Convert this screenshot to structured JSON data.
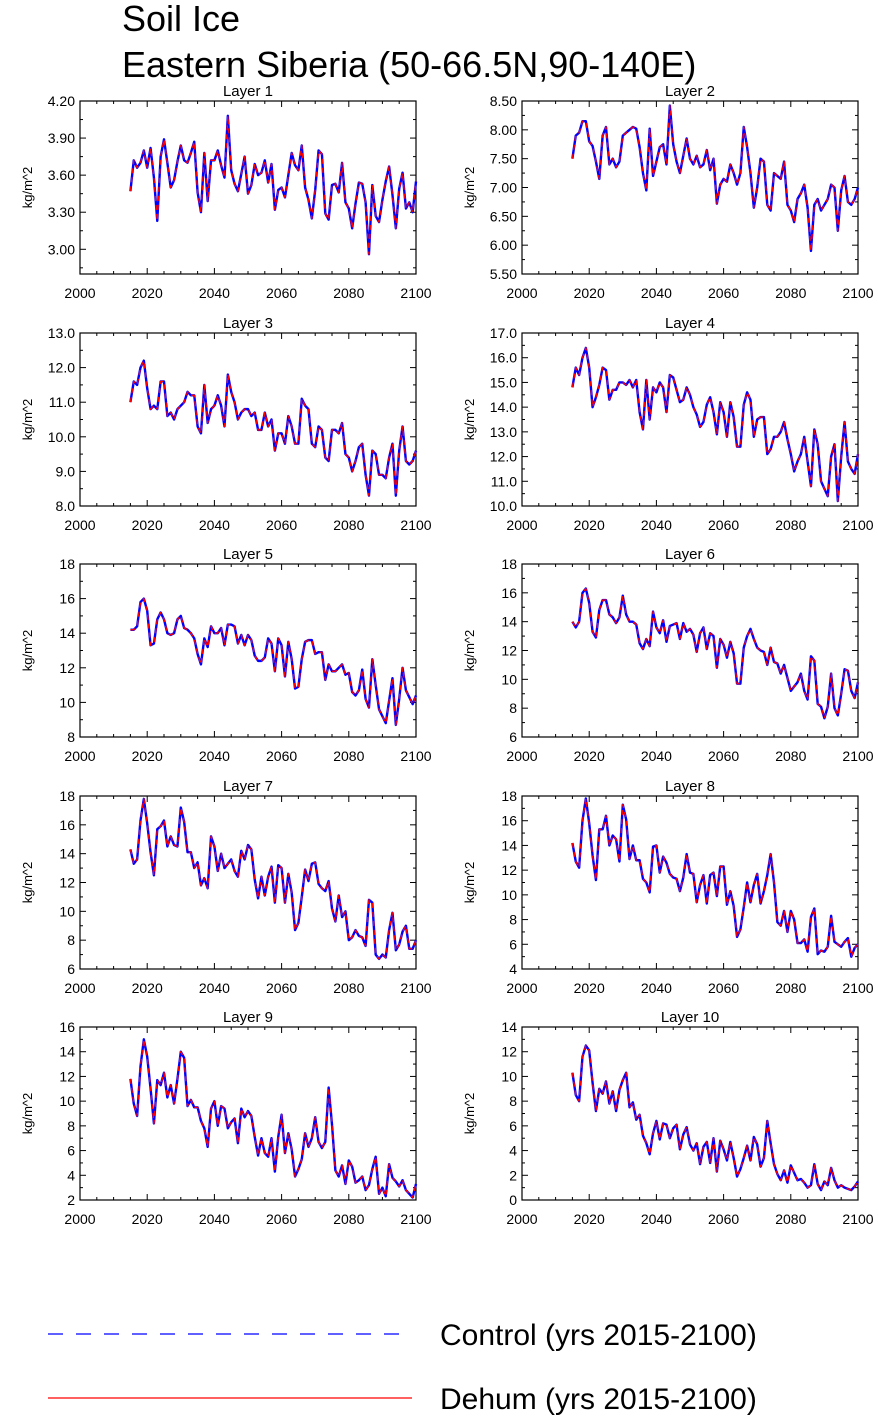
{
  "chart_data": {
    "type": "line",
    "title": [
      "Soil Ice",
      "Eastern Siberia (50-66.5N,90-140E)"
    ],
    "legend": [
      {
        "name": "Control (yrs 2015-2100)",
        "color": "#0000ff",
        "style": "dashed"
      },
      {
        "name": "Dehum (yrs 2015-2100)",
        "color": "#ff0000",
        "style": "solid"
      }
    ],
    "x_start": 2015,
    "xlim": [
      2000,
      2100
    ],
    "xticks": [
      2000,
      2020,
      2040,
      2060,
      2080,
      2100
    ],
    "ylabel": "kg/m^2",
    "panels": [
      {
        "title": "Layer 1",
        "ylim": [
          2.8,
          4.2
        ],
        "yticks": [
          3.0,
          3.3,
          3.6,
          3.9,
          4.2
        ],
        "ytick_labels": [
          "3.00",
          "3.30",
          "3.60",
          "3.90",
          "4.20"
        ],
        "values": [
          3.47,
          3.72,
          3.66,
          3.7,
          3.8,
          3.66,
          3.82,
          3.58,
          3.23,
          3.75,
          3.89,
          3.7,
          3.5,
          3.56,
          3.71,
          3.84,
          3.72,
          3.7,
          3.78,
          3.87,
          3.46,
          3.3,
          3.78,
          3.39,
          3.72,
          3.72,
          3.8,
          3.68,
          3.58,
          4.08,
          3.64,
          3.53,
          3.47,
          3.61,
          3.75,
          3.45,
          3.52,
          3.69,
          3.6,
          3.62,
          3.72,
          3.54,
          3.69,
          3.32,
          3.48,
          3.5,
          3.42,
          3.6,
          3.78,
          3.68,
          3.64,
          3.84,
          3.5,
          3.4,
          3.25,
          3.48,
          3.8,
          3.77,
          3.29,
          3.24,
          3.52,
          3.53,
          3.46,
          3.7,
          3.38,
          3.33,
          3.17,
          3.37,
          3.54,
          3.53,
          3.38,
          2.96,
          3.52,
          3.27,
          3.22,
          3.4,
          3.55,
          3.67,
          3.44,
          3.17,
          3.49,
          3.62,
          3.33,
          3.38,
          3.3,
          3.55
        ]
      },
      {
        "title": "Layer 2",
        "ylim": [
          5.5,
          8.5
        ],
        "yticks": [
          5.5,
          6.0,
          6.5,
          7.0,
          7.5,
          8.0,
          8.5
        ],
        "ytick_labels": [
          "5.50",
          "6.00",
          "6.50",
          "7.00",
          "7.50",
          "8.00",
          "8.50"
        ],
        "values": [
          7.5,
          7.9,
          7.95,
          8.15,
          8.15,
          7.8,
          7.72,
          7.45,
          7.15,
          7.9,
          8.05,
          7.4,
          7.5,
          7.35,
          7.45,
          7.9,
          7.95,
          8.0,
          8.05,
          8.02,
          7.7,
          7.25,
          6.95,
          8.02,
          7.2,
          7.45,
          7.7,
          7.75,
          7.4,
          8.42,
          7.75,
          7.45,
          7.25,
          7.55,
          7.85,
          7.5,
          7.4,
          7.55,
          7.35,
          7.4,
          7.65,
          7.3,
          7.5,
          6.72,
          7.05,
          7.15,
          7.1,
          7.4,
          7.25,
          7.05,
          7.25,
          8.05,
          7.7,
          7.25,
          6.65,
          7.0,
          7.5,
          7.45,
          6.7,
          6.6,
          7.25,
          7.2,
          7.15,
          7.45,
          6.7,
          6.6,
          6.4,
          6.8,
          6.9,
          7.05,
          6.65,
          5.9,
          6.7,
          6.8,
          6.6,
          6.7,
          6.8,
          7.05,
          7.0,
          6.25,
          6.95,
          7.2,
          6.75,
          6.7,
          6.8,
          7.0
        ]
      },
      {
        "title": "Layer 3",
        "ylim": [
          8.0,
          13.0
        ],
        "yticks": [
          8,
          9,
          10,
          11,
          12,
          13
        ],
        "ytick_labels": [
          "8.0",
          "9.0",
          "10.0",
          "11.0",
          "12.0",
          "13.0"
        ],
        "values": [
          11.0,
          11.6,
          11.5,
          12.0,
          12.2,
          11.4,
          10.8,
          10.9,
          10.8,
          11.6,
          11.6,
          10.6,
          10.7,
          10.5,
          10.8,
          10.9,
          11.0,
          11.3,
          11.2,
          11.2,
          10.3,
          10.1,
          11.5,
          10.4,
          10.8,
          10.9,
          11.2,
          10.9,
          10.3,
          11.8,
          11.3,
          11.0,
          10.5,
          10.7,
          10.8,
          10.8,
          10.6,
          10.7,
          10.2,
          10.2,
          10.7,
          10.3,
          10.5,
          9.6,
          10.1,
          10.1,
          9.8,
          10.6,
          10.3,
          9.8,
          9.8,
          11.1,
          10.9,
          10.8,
          9.8,
          9.7,
          10.3,
          10.2,
          9.4,
          9.3,
          10.2,
          10.2,
          10.1,
          10.4,
          9.5,
          9.4,
          9.0,
          9.3,
          9.7,
          9.8,
          8.9,
          8.3,
          9.6,
          9.5,
          8.9,
          8.9,
          8.8,
          9.4,
          9.8,
          8.3,
          9.6,
          10.3,
          9.3,
          9.2,
          9.3,
          9.6
        ]
      },
      {
        "title": "Layer 4",
        "ylim": [
          10,
          17
        ],
        "yticks": [
          10,
          11,
          12,
          13,
          14,
          15,
          16,
          17
        ],
        "ytick_labels": [
          "10.0",
          "11.0",
          "12.0",
          "13.0",
          "14.0",
          "15.0",
          "16.0",
          "17.0"
        ],
        "values": [
          14.8,
          15.6,
          15.3,
          16.0,
          16.4,
          15.6,
          14.0,
          14.4,
          14.9,
          15.6,
          15.5,
          14.3,
          14.7,
          14.7,
          15.0,
          15.0,
          14.9,
          15.1,
          14.8,
          15.1,
          13.8,
          13.1,
          15.1,
          13.5,
          14.8,
          14.6,
          15.0,
          14.8,
          13.8,
          15.3,
          15.2,
          14.7,
          14.2,
          14.3,
          14.8,
          14.5,
          14.0,
          13.7,
          13.2,
          13.4,
          14.1,
          14.4,
          13.8,
          12.9,
          14.2,
          13.8,
          12.8,
          14.2,
          13.6,
          12.4,
          12.4,
          14.1,
          14.6,
          14.3,
          12.8,
          13.5,
          13.6,
          13.6,
          12.1,
          12.3,
          12.8,
          12.8,
          13.0,
          13.4,
          12.7,
          12.1,
          11.4,
          11.8,
          12.1,
          12.8,
          11.8,
          10.8,
          13.1,
          12.5,
          11.0,
          10.7,
          10.4,
          12.0,
          12.5,
          10.2,
          12.0,
          13.4,
          11.8,
          11.5,
          11.3,
          12.1
        ]
      },
      {
        "title": "Layer 5",
        "ylim": [
          8,
          18
        ],
        "yticks": [
          8,
          10,
          12,
          14,
          16,
          18
        ],
        "ytick_labels": [
          "8",
          "10",
          "12",
          "14",
          "16",
          "18"
        ],
        "values": [
          14.2,
          14.2,
          14.4,
          15.8,
          16.0,
          15.3,
          13.3,
          13.4,
          14.8,
          15.2,
          14.8,
          14.0,
          13.9,
          14.0,
          14.8,
          15.0,
          14.3,
          14.2,
          14.0,
          13.7,
          12.8,
          12.2,
          13.7,
          13.2,
          14.4,
          14.0,
          14.0,
          14.3,
          13.3,
          14.5,
          14.5,
          14.4,
          13.4,
          13.9,
          13.3,
          13.9,
          13.6,
          12.7,
          12.4,
          12.4,
          12.6,
          13.7,
          13.4,
          11.8,
          13.7,
          13.3,
          11.5,
          13.5,
          12.5,
          10.8,
          10.9,
          12.5,
          13.5,
          13.6,
          13.6,
          12.8,
          12.9,
          12.9,
          11.3,
          12.2,
          11.8,
          11.8,
          12.0,
          12.2,
          11.6,
          11.7,
          10.6,
          10.4,
          10.7,
          11.9,
          10.2,
          9.7,
          12.5,
          11.0,
          9.6,
          9.2,
          8.8,
          10.1,
          11.4,
          8.7,
          10.2,
          12.0,
          10.7,
          10.3,
          9.9,
          10.4
        ]
      },
      {
        "title": "Layer 6",
        "ylim": [
          6,
          18
        ],
        "yticks": [
          6,
          8,
          10,
          12,
          14,
          16,
          18
        ],
        "ytick_labels": [
          "6",
          "8",
          "10",
          "12",
          "14",
          "16",
          "18"
        ],
        "values": [
          14.0,
          13.6,
          14.0,
          16.0,
          16.3,
          15.3,
          13.3,
          12.9,
          14.8,
          15.5,
          15.5,
          14.5,
          14.3,
          13.9,
          14.3,
          15.8,
          14.5,
          14.0,
          14.0,
          13.8,
          12.5,
          12.1,
          12.8,
          12.3,
          14.7,
          13.6,
          13.2,
          14.1,
          12.6,
          13.7,
          13.8,
          13.9,
          12.8,
          13.9,
          13.3,
          13.5,
          13.1,
          11.9,
          13.2,
          13.6,
          12.1,
          13.2,
          13.0,
          10.8,
          12.8,
          12.4,
          11.5,
          12.6,
          11.8,
          9.7,
          9.7,
          12.2,
          13.0,
          13.5,
          12.8,
          12.2,
          12.0,
          11.9,
          11.0,
          12.2,
          11.2,
          11.1,
          10.4,
          11.0,
          10.1,
          9.2,
          9.5,
          9.8,
          10.4,
          9.2,
          8.6,
          11.6,
          11.3,
          8.3,
          8.1,
          7.3,
          8.1,
          10.4,
          8.0,
          7.5,
          9.0,
          10.7,
          10.6,
          9.2,
          8.7,
          9.8
        ]
      },
      {
        "title": "Layer 7",
        "ylim": [
          6,
          18
        ],
        "yticks": [
          6,
          8,
          10,
          12,
          14,
          16,
          18
        ],
        "ytick_labels": [
          "6",
          "8",
          "10",
          "12",
          "14",
          "16",
          "18"
        ],
        "values": [
          14.3,
          13.3,
          13.6,
          16.3,
          17.8,
          16.1,
          14.1,
          12.5,
          15.7,
          15.9,
          16.3,
          14.5,
          15.2,
          14.6,
          14.5,
          17.2,
          16.2,
          14.1,
          14.1,
          13.0,
          13.4,
          11.8,
          12.3,
          11.6,
          15.2,
          14.5,
          12.8,
          14.0,
          13.0,
          13.3,
          13.6,
          12.8,
          12.4,
          14.2,
          13.6,
          14.6,
          14.3,
          12.2,
          10.9,
          12.4,
          11.1,
          12.4,
          13.1,
          10.6,
          13.2,
          13.0,
          10.6,
          12.6,
          11.3,
          8.7,
          9.2,
          11.0,
          12.9,
          12.1,
          13.3,
          13.4,
          11.9,
          11.6,
          11.4,
          12.1,
          10.2,
          9.3,
          11.1,
          9.6,
          10.0,
          8.0,
          8.2,
          8.7,
          8.3,
          8.2,
          7.6,
          10.8,
          10.6,
          7.0,
          6.7,
          7.0,
          6.8,
          8.7,
          9.9,
          7.3,
          7.7,
          8.6,
          9.0,
          7.4,
          7.4,
          8.0
        ]
      },
      {
        "title": "Layer 8",
        "ylim": [
          4,
          18
        ],
        "yticks": [
          4,
          6,
          8,
          10,
          12,
          14,
          16,
          18
        ],
        "ytick_labels": [
          "4",
          "6",
          "8",
          "10",
          "12",
          "14",
          "16",
          "18"
        ],
        "values": [
          14.2,
          12.7,
          12.2,
          16.0,
          17.8,
          15.8,
          13.2,
          11.2,
          15.3,
          15.3,
          16.4,
          14.0,
          14.8,
          14.5,
          12.7,
          17.3,
          16.1,
          12.9,
          14.0,
          12.8,
          12.8,
          11.3,
          11.0,
          10.2,
          13.9,
          14.0,
          11.8,
          13.1,
          12.6,
          11.7,
          11.4,
          11.3,
          10.3,
          11.4,
          13.3,
          11.8,
          11.7,
          9.4,
          10.8,
          11.6,
          9.3,
          11.6,
          11.8,
          9.9,
          12.3,
          12.3,
          9.2,
          10.3,
          9.1,
          6.6,
          7.2,
          9.0,
          11.0,
          9.4,
          10.8,
          11.7,
          9.3,
          10.3,
          11.6,
          13.3,
          11.0,
          7.8,
          7.5,
          8.7,
          7.0,
          8.7,
          8.0,
          6.1,
          6.1,
          6.4,
          5.4,
          8.2,
          8.9,
          5.2,
          5.5,
          5.4,
          5.8,
          8.3,
          6.2,
          6.0,
          5.8,
          6.2,
          6.5,
          5.0,
          5.7,
          6.0
        ]
      },
      {
        "title": "Layer 9",
        "ylim": [
          2,
          16
        ],
        "yticks": [
          2,
          4,
          6,
          8,
          10,
          12,
          14,
          16
        ],
        "ytick_labels": [
          "2",
          "4",
          "6",
          "8",
          "10",
          "12",
          "14",
          "16"
        ],
        "values": [
          11.8,
          9.8,
          8.8,
          12.8,
          15.0,
          13.6,
          11.0,
          8.2,
          11.7,
          11.3,
          12.3,
          10.3,
          11.3,
          9.8,
          11.8,
          14.0,
          13.5,
          9.6,
          10.1,
          9.5,
          9.5,
          8.4,
          7.8,
          6.3,
          9.4,
          10.0,
          8.0,
          9.6,
          9.4,
          7.8,
          8.3,
          8.6,
          6.6,
          9.4,
          8.7,
          9.2,
          8.8,
          7.1,
          5.6,
          7.0,
          5.8,
          5.5,
          7.0,
          4.3,
          7.1,
          8.9,
          5.8,
          7.4,
          6.1,
          3.9,
          4.5,
          5.3,
          7.4,
          6.3,
          7.0,
          8.7,
          6.7,
          6.2,
          6.7,
          11.1,
          8.1,
          4.4,
          3.9,
          4.8,
          3.3,
          5.2,
          4.7,
          3.4,
          3.6,
          3.9,
          2.8,
          3.2,
          4.5,
          5.5,
          2.5,
          3.0,
          2.3,
          4.9,
          3.8,
          3.5,
          3.1,
          3.6,
          2.8,
          2.5,
          2.2,
          3.3
        ]
      },
      {
        "title": "Layer 10",
        "ylim": [
          0,
          14
        ],
        "yticks": [
          0,
          2,
          4,
          6,
          8,
          10,
          12,
          14
        ],
        "ytick_labels": [
          "0",
          "2",
          "4",
          "6",
          "8",
          "10",
          "12",
          "14"
        ],
        "values": [
          10.3,
          8.5,
          8.0,
          11.6,
          12.5,
          12.1,
          9.5,
          7.2,
          9.0,
          8.6,
          9.6,
          7.8,
          8.8,
          7.2,
          8.9,
          9.7,
          10.3,
          7.5,
          7.9,
          6.5,
          6.9,
          5.2,
          4.6,
          3.7,
          5.4,
          6.4,
          4.9,
          6.2,
          6.1,
          5.0,
          5.8,
          6.1,
          4.1,
          5.3,
          5.9,
          4.5,
          4.0,
          4.6,
          2.9,
          4.3,
          4.7,
          3.0,
          5.0,
          2.3,
          4.8,
          4.1,
          3.2,
          4.7,
          3.4,
          1.9,
          2.5,
          3.4,
          4.4,
          3.2,
          5.1,
          4.5,
          2.7,
          3.4,
          6.4,
          4.6,
          2.9,
          2.1,
          1.6,
          2.4,
          1.4,
          2.8,
          2.2,
          1.6,
          1.7,
          1.4,
          1.0,
          1.2,
          2.9,
          1.3,
          0.8,
          1.5,
          1.2,
          2.6,
          1.6,
          1.0,
          1.2,
          1.0,
          0.9,
          0.8,
          1.1,
          1.5
        ]
      }
    ]
  }
}
